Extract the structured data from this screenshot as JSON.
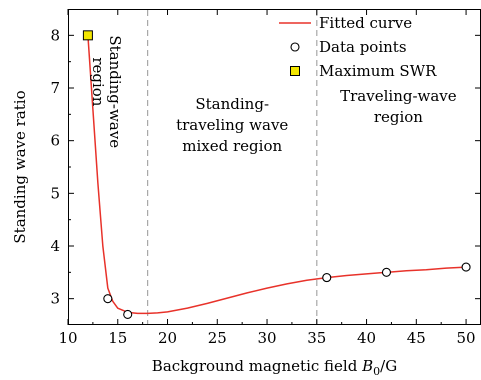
{
  "chart_data": {
    "type": "line",
    "xlabel": "Background magnetic field B0/G",
    "xlabel_parts": {
      "pre": "Background magnetic field ",
      "var": "B",
      "sub": "0",
      "post": "/G"
    },
    "ylabel": "Standing wave ratio",
    "xlim": [
      10,
      51.5
    ],
    "ylim": [
      2.5,
      8.5
    ],
    "xticks": [
      10,
      15,
      20,
      25,
      30,
      35,
      40,
      45,
      50
    ],
    "yticks": [
      3,
      4,
      5,
      6,
      7,
      8
    ],
    "grid": false,
    "legend_position": "top-right",
    "legend": [
      {
        "label": "Fitted curve",
        "marker": "line",
        "color": "#e8322a"
      },
      {
        "label": "Data points",
        "marker": "open-circle",
        "color": "#000000"
      },
      {
        "label": "Maximum SWR",
        "marker": "square",
        "color": "#f3e600"
      }
    ],
    "series": [
      {
        "name": "Fitted curve",
        "style": "line",
        "color": "#e8322a",
        "x": [
          12,
          12.5,
          13,
          13.5,
          14,
          14.5,
          15,
          16,
          17,
          18,
          19,
          20,
          22,
          24,
          26,
          28,
          30,
          32,
          34,
          36,
          38,
          40,
          42,
          44,
          46,
          48,
          50
        ],
        "y": [
          8.0,
          6.6,
          5.2,
          4.0,
          3.2,
          2.95,
          2.82,
          2.74,
          2.72,
          2.72,
          2.73,
          2.75,
          2.82,
          2.91,
          3.01,
          3.11,
          3.2,
          3.28,
          3.35,
          3.4,
          3.44,
          3.47,
          3.5,
          3.53,
          3.55,
          3.58,
          3.6
        ]
      },
      {
        "name": "Data points",
        "style": "open-circle",
        "x": [
          14,
          16,
          36,
          42,
          50
        ],
        "y": [
          3.0,
          2.7,
          3.4,
          3.5,
          3.6
        ]
      },
      {
        "name": "Maximum SWR",
        "style": "square",
        "color": "#f3e600",
        "x": [
          12
        ],
        "y": [
          8.0
        ]
      }
    ],
    "dividers": [
      18,
      35
    ],
    "regions": [
      {
        "lines": [
          "Standing-wave",
          "region"
        ],
        "x": 14.2,
        "y": 8.0,
        "rotated": true
      },
      {
        "lines": [
          "Standing-",
          "traveling wave",
          "mixed region"
        ],
        "x": 26.5,
        "y": 6.6,
        "rotated": false
      },
      {
        "lines": [
          "Traveling-wave",
          "region"
        ],
        "x": 43.2,
        "y": 6.75,
        "rotated": false
      }
    ]
  }
}
